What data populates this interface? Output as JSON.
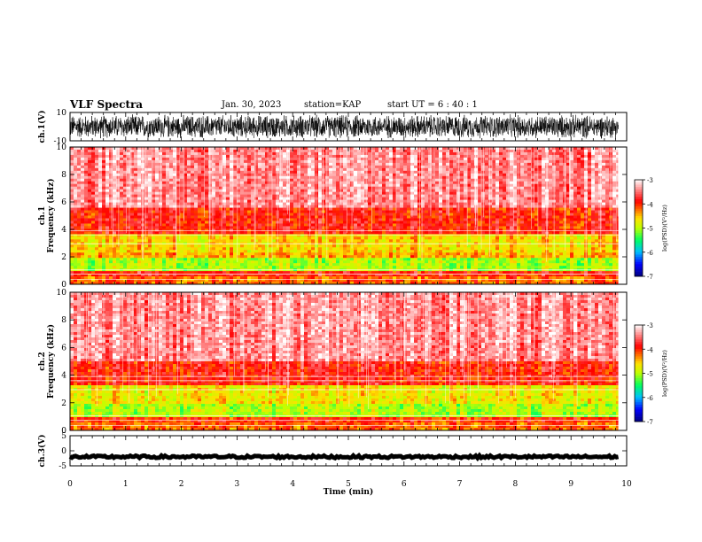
{
  "header": {
    "title": "VLF Spectra",
    "date": "Jan. 30, 2023",
    "station": "station=KAP",
    "start": "start  UT =   6 : 40 : 1"
  },
  "chart_data": [
    {
      "type": "line",
      "panel": "ch1-waveform",
      "ylabel": "ch.1(V)",
      "ylim": [
        -10,
        10
      ],
      "yticks": [
        "10",
        "-10"
      ],
      "xlim": [
        0,
        9.85
      ],
      "note_series": "dense noise trace spanning approx -9 to 9 V"
    },
    {
      "type": "heatmap",
      "panel": "ch1-spectrogram",
      "ylabel": "ch.1 Frequency (kHz)",
      "ylim": [
        0,
        10
      ],
      "yticks": [
        "0",
        "2",
        "4",
        "6",
        "8",
        "10"
      ],
      "xlim": [
        0,
        9.85
      ],
      "colorbar": {
        "label": "log(PSD)(V²/Hz)",
        "range": [
          -7,
          -3
        ],
        "ticks": [
          "-3",
          "-4",
          "-5",
          "-6",
          "-7"
        ],
        "colormap": [
          "#000080",
          "#0000ff",
          "#00c0ff",
          "#00ff60",
          "#c0ff00",
          "#ffe000",
          "#ff8000",
          "#ff0000",
          "#ffffff"
        ]
      },
      "bands": [
        {
          "from": 0.0,
          "to": 0.6,
          "level": -4.3
        },
        {
          "from": 0.6,
          "to": 1.0,
          "level": -4.0
        },
        {
          "from": 1.0,
          "to": 1.9,
          "level": -5.1
        },
        {
          "from": 1.9,
          "to": 2.4,
          "level": -4.5
        },
        {
          "from": 2.4,
          "to": 3.7,
          "level": -4.7
        },
        {
          "from": 3.7,
          "to": 5.5,
          "level": -4.0
        },
        {
          "from": 5.5,
          "to": 10.0,
          "level": -3.5
        }
      ]
    },
    {
      "type": "heatmap",
      "panel": "ch2-spectrogram",
      "ylabel": "ch.2 Frequency (kHz)",
      "ylim": [
        0,
        10
      ],
      "yticks": [
        "0",
        "2",
        "4",
        "6",
        "8",
        "10"
      ],
      "xlim": [
        0,
        9.85
      ],
      "colorbar": {
        "label": "log(PSD)(V²/Hz)",
        "range": [
          -7,
          -3
        ],
        "ticks": [
          "-3",
          "-4",
          "-5",
          "-6",
          "-7"
        ],
        "colormap": [
          "#000080",
          "#0000ff",
          "#00c0ff",
          "#00ff60",
          "#c0ff00",
          "#ffe000",
          "#ff8000",
          "#ff0000",
          "#ffffff"
        ]
      },
      "bands": [
        {
          "from": 0.0,
          "to": 0.6,
          "level": -4.3
        },
        {
          "from": 0.6,
          "to": 1.0,
          "level": -4.1
        },
        {
          "from": 1.0,
          "to": 2.0,
          "level": -5.1
        },
        {
          "from": 2.0,
          "to": 3.2,
          "level": -4.8
        },
        {
          "from": 3.2,
          "to": 5.0,
          "level": -4.0
        },
        {
          "from": 5.0,
          "to": 10.0,
          "level": -3.5
        }
      ]
    },
    {
      "type": "line",
      "panel": "ch3-waveform",
      "ylabel": "ch.3(V)",
      "ylim": [
        -5,
        5
      ],
      "yticks": [
        "5",
        "0",
        "-5"
      ],
      "xlim": [
        0,
        9.85
      ],
      "note_series": "thick flat trace centred near -2 V"
    }
  ],
  "xaxis": {
    "label": "Time  (min)",
    "range": [
      0,
      10
    ],
    "ticks": [
      "0",
      "1",
      "2",
      "3",
      "4",
      "5",
      "6",
      "7",
      "8",
      "9",
      "10"
    ]
  }
}
